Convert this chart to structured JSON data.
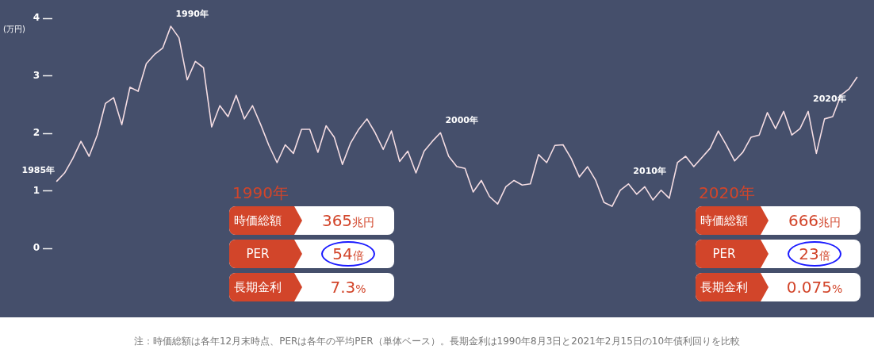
{
  "chart_data": {
    "type": "line",
    "ylabel": "(万円)",
    "ylim": [
      0,
      4
    ],
    "yticks": [
      0,
      1,
      2,
      3,
      4
    ],
    "tick_labels": "y",
    "categories": [
      null,
      null,
      null,
      null,
      null,
      null,
      null,
      null,
      null,
      null,
      null,
      null,
      null,
      null,
      null,
      null,
      null,
      null,
      null,
      null,
      null,
      null,
      null,
      null,
      null,
      null,
      null,
      null,
      null,
      null,
      null,
      null,
      null,
      null,
      null,
      null,
      null,
      null,
      null,
      null,
      null,
      null,
      null,
      null,
      null,
      null,
      null,
      null,
      null,
      null,
      null,
      null,
      null,
      null,
      null,
      null,
      null,
      null,
      null,
      null,
      null,
      null,
      null,
      null,
      null,
      null,
      null,
      null,
      null,
      null,
      null,
      null,
      null,
      null,
      null,
      null,
      null,
      null,
      null,
      null,
      null,
      null,
      null,
      null,
      null,
      null,
      null,
      null,
      null,
      null,
      null,
      null,
      null,
      null,
      null,
      null,
      null,
      null,
      null
    ],
    "series": [
      {
        "color": "#f5dde3",
        "values": [
          1.16,
          1.31,
          1.56,
          1.86,
          1.6,
          1.97,
          2.52,
          2.62,
          2.15,
          2.8,
          2.73,
          3.21,
          3.37,
          3.48,
          3.86,
          3.66,
          2.93,
          3.25,
          3.14,
          2.11,
          2.48,
          2.29,
          2.66,
          2.25,
          2.48,
          2.15,
          1.79,
          1.49,
          1.8,
          1.65,
          2.07,
          2.07,
          1.67,
          2.13,
          1.93,
          1.46,
          1.83,
          2.07,
          2.25,
          2.01,
          1.72,
          2.04,
          1.51,
          1.69,
          1.31,
          1.69,
          1.86,
          2.01,
          1.6,
          1.42,
          1.39,
          0.98,
          1.18,
          0.9,
          0.77,
          1.07,
          1.18,
          1.1,
          1.12,
          1.63,
          1.49,
          1.79,
          1.8,
          1.56,
          1.24,
          1.42,
          1.18,
          0.8,
          0.73,
          1.01,
          1.12,
          0.94,
          1.07,
          0.84,
          1.01,
          0.87,
          1.49,
          1.6,
          1.42,
          1.58,
          1.74,
          2.04,
          1.79,
          1.52,
          1.67,
          1.93,
          1.97,
          2.36,
          2.08,
          2.38,
          1.97,
          2.08,
          2.38,
          1.65,
          2.25,
          2.29,
          2.66,
          2.77,
          2.98
        ]
      }
    ],
    "annotations": [
      "1985年",
      "1990年",
      "2000年",
      "2010年",
      "2020年",
      "1990年",
      "時価総額",
      "365兆円",
      "PER",
      "54倍",
      "長期金利",
      "7.3%",
      "2020年",
      "時価総額",
      "666兆円",
      "PER",
      "23倍",
      "長期金利",
      "0.075%",
      "注：時価総額は各年12月末時点、PERは各年の平均PER（単体ベース）。長期金利は1990年8月3日と2021年2月15日の10年債利回りを比較"
    ]
  }
}
